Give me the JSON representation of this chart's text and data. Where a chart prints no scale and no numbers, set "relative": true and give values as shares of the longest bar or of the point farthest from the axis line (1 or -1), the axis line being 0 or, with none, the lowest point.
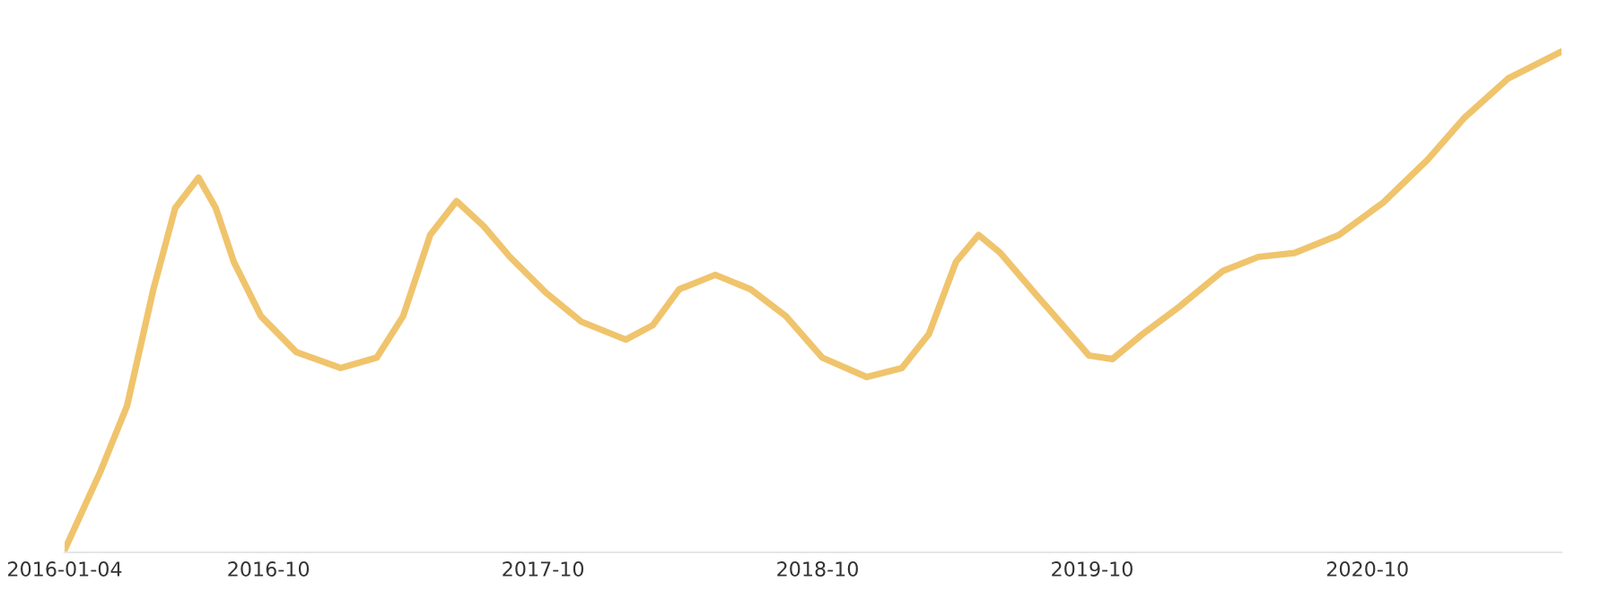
{
  "chart_data": {
    "type": "line",
    "relative": true,
    "tick_labels": "x",
    "grid": false,
    "marker": "none",
    "line_style": "solid",
    "x": [
      "2016-01-04",
      "2016-02-20",
      "2016-03-27",
      "2016-05-01",
      "2016-05-30",
      "2016-06-30",
      "2016-07-23",
      "2016-08-16",
      "2016-09-21",
      "2016-11-07",
      "2017-01-05",
      "2017-02-22",
      "2017-03-29",
      "2017-05-04",
      "2017-06-08",
      "2017-07-14",
      "2017-08-18",
      "2017-10-05",
      "2017-11-21",
      "2018-01-19",
      "2018-02-24",
      "2018-03-31",
      "2018-05-18",
      "2018-07-04",
      "2018-08-20",
      "2018-10-07",
      "2018-12-05",
      "2019-01-21",
      "2019-02-26",
      "2019-04-03",
      "2019-05-03",
      "2019-06-01",
      "2019-07-18",
      "2019-08-23",
      "2019-09-27",
      "2019-10-28",
      "2019-12-07",
      "2020-01-24",
      "2020-03-23",
      "2020-05-09",
      "2020-06-26",
      "2020-08-24",
      "2020-10-22",
      "2020-12-20",
      "2021-02-06",
      "2021-04-06",
      "2021-06-16"
    ],
    "xlim": [
      "2016-01-04",
      "2021-06-16"
    ],
    "xticks": [
      "2016-01-04",
      "2016-10",
      "2017-10",
      "2018-10",
      "2019-10",
      "2020-10"
    ],
    "series": [
      {
        "color": "#f0c46c",
        "values": [
          0,
          0.155,
          0.289,
          0.523,
          0.686,
          0.747,
          0.686,
          0.578,
          0.469,
          0.397,
          0.365,
          0.386,
          0.469,
          0.632,
          0.7,
          0.65,
          0.588,
          0.516,
          0.458,
          0.422,
          0.451,
          0.523,
          0.552,
          0.523,
          0.469,
          0.386,
          0.347,
          0.365,
          0.433,
          0.578,
          0.632,
          0.596,
          0.513,
          0.451,
          0.39,
          0.383,
          0.433,
          0.487,
          0.56,
          0.588,
          0.596,
          0.632,
          0.697,
          0.783,
          0.866,
          0.946,
          1
        ]
      }
    ]
  }
}
